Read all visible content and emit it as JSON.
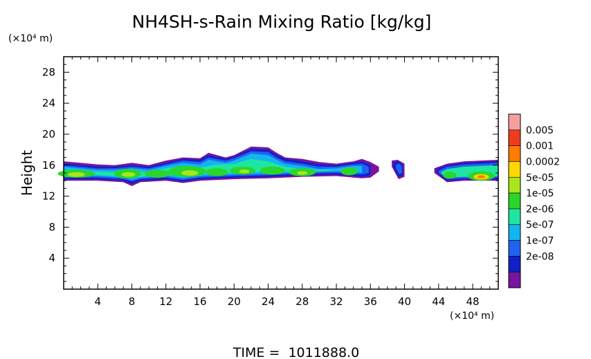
{
  "chart_data": {
    "type": "heatmap",
    "title": "NH4SH-s-Rain Mixing Ratio [kg/kg]",
    "ylabel": "Height",
    "x_unit": "(×10⁴ m)",
    "y_unit": "(×10⁴ m)",
    "xlim": [
      0,
      51
    ],
    "ylim": [
      0,
      30
    ],
    "x_ticks": [
      4,
      8,
      12,
      16,
      20,
      24,
      28,
      32,
      36,
      40,
      44,
      48
    ],
    "y_ticks": [
      4,
      8,
      12,
      16,
      20,
      24,
      28
    ],
    "colorbar": {
      "labels": [
        "0.005",
        "0.001",
        "0.0002",
        "5e-05",
        "1e-05",
        "2e-06",
        "5e-07",
        "1e-07",
        "2e-08"
      ],
      "colors": [
        "#f5a0a0",
        "#f03c1e",
        "#ff7a00",
        "#ffd700",
        "#a8e61e",
        "#2ad62a",
        "#1ee6a0",
        "#14b4f0",
        "#1e64f0",
        "#1020c8",
        "#7814a0"
      ]
    },
    "cloud_layer": {
      "base_km_x1e4": 13.5,
      "top_km_x1e4": 18.5,
      "segments": [
        {
          "x_start": 0,
          "x_end": 37,
          "y_base": 14,
          "y_top": 16.5
        },
        {
          "x_start": 38.5,
          "x_end": 40,
          "y_base": 14.2,
          "y_top": 16.5
        },
        {
          "x_start": 43.5,
          "x_end": 51,
          "y_base": 13.8,
          "y_top": 16.5
        }
      ]
    }
  },
  "footer": {
    "time_text": "TIME =  1011888.0"
  }
}
